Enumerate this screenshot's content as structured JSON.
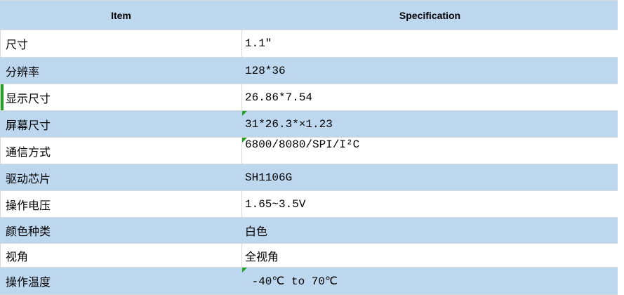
{
  "table": {
    "header": {
      "item_label": "Item",
      "spec_label": "Specification"
    },
    "rows": [
      {
        "item": "尺寸",
        "spec": "1.1″"
      },
      {
        "item": "分辨率",
        "spec": "128*36"
      },
      {
        "item": "显示尺寸",
        "spec": "26.86*7.54",
        "green_left_bar": true
      },
      {
        "item": "屏幕尺寸",
        "spec": "31*26.3*×1.23",
        "green_corner_flag": true
      },
      {
        "item": "通信方式",
        "spec": "6800/8080/SPI/I²C",
        "green_corner_flag": true
      },
      {
        "item": "驱动芯片",
        "spec": "SH1106G"
      },
      {
        "item": "操作电压",
        "spec": "1.65~3.5V"
      },
      {
        "item": "颜色种类",
        "spec": "白色"
      },
      {
        "item": "视角",
        "spec": "全视角"
      },
      {
        "item": "操作温度",
        "spec": " -40℃ to 70℃",
        "green_corner_flag": true
      }
    ],
    "colors": {
      "header_fill": "#BDD7EE",
      "alt_row_fill": "#BDD7EE",
      "gridline": "#D9D9D9",
      "flag_green": "#21A121",
      "text": "#000000"
    }
  }
}
